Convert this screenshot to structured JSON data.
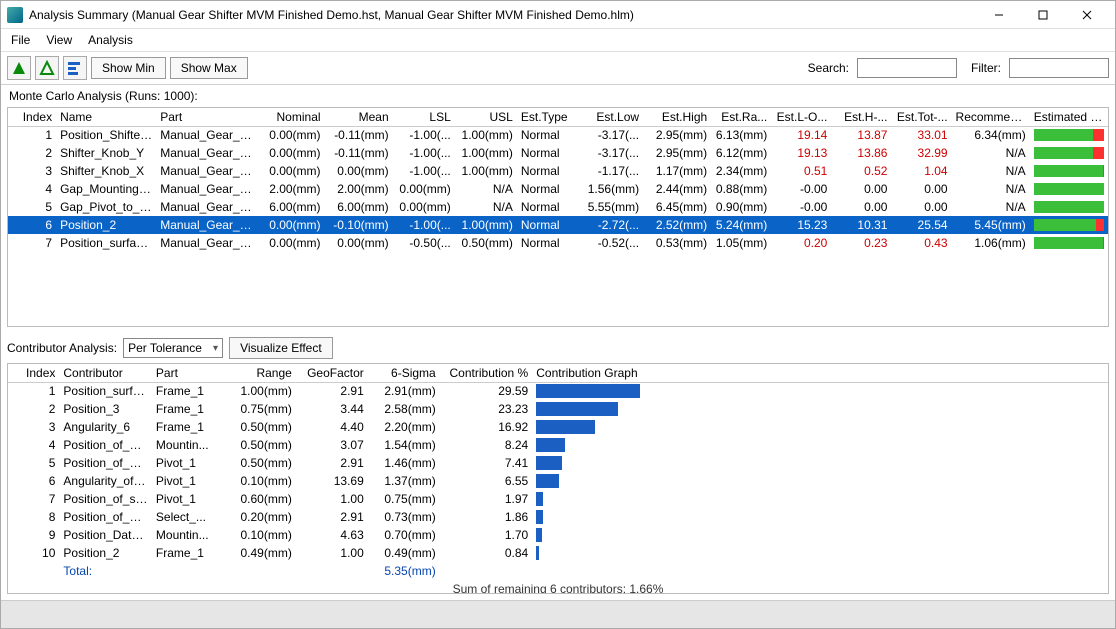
{
  "window": {
    "title": "Analysis Summary (Manual Gear Shifter MVM Finished Demo.hst, Manual Gear Shifter MVM Finished Demo.hlm)"
  },
  "menu": {
    "file": "File",
    "view": "View",
    "analysis": "Analysis"
  },
  "toolbar": {
    "show_min": "Show Min",
    "show_max": "Show Max",
    "search_label": "Search:",
    "search_value": "",
    "filter_label": "Filter:",
    "filter_value": ""
  },
  "mc_label": "Monte Carlo Analysis (Runs: 1000):",
  "mc_columns": [
    "Index",
    "Name",
    "Part",
    "Nominal",
    "Mean",
    "LSL",
    "USL",
    "Est.Type",
    "Est.Low",
    "Est.High",
    "Est.Ra...",
    "Est.L-O...",
    "Est.H-...",
    "Est.Tot-...",
    "Recommen...",
    "Estimated P..."
  ],
  "mc_col_widths": [
    48,
    100,
    100,
    68,
    68,
    62,
    62,
    58,
    68,
    68,
    60,
    60,
    60,
    60,
    78,
    78
  ],
  "mc_col_align": [
    "r",
    "l",
    "l",
    "r",
    "r",
    "r",
    "r",
    "l",
    "r",
    "r",
    "r",
    "r",
    "r",
    "r",
    "r",
    "l"
  ],
  "mc_rows": [
    {
      "idx": "1",
      "name": "Position_Shifter_...",
      "part": "Manual_Gear_Sh...",
      "nominal": "0.00(mm)",
      "mean": "-0.11(mm)",
      "lsl": "-1.00(...",
      "usl": "1.00(mm)",
      "etype": "Normal",
      "elow": "-3.17(...",
      "ehigh": "2.95(mm)",
      "era": "6.13(mm)",
      "elo": "19.14",
      "ehi": "13.87",
      "etot": "33.01",
      "rec": "6.34(mm)",
      "perf": {
        "green_l": 0,
        "green_w": 85,
        "red_l": 85,
        "red_w": 15
      },
      "red": true
    },
    {
      "idx": "2",
      "name": "Shifter_Knob_Y",
      "part": "Manual_Gear_Sh...",
      "nominal": "0.00(mm)",
      "mean": "-0.11(mm)",
      "lsl": "-1.00(...",
      "usl": "1.00(mm)",
      "etype": "Normal",
      "elow": "-3.17(...",
      "ehigh": "2.95(mm)",
      "era": "6.12(mm)",
      "elo": "19.13",
      "ehi": "13.86",
      "etot": "32.99",
      "rec": "N/A",
      "perf": {
        "green_l": 0,
        "green_w": 85,
        "red_l": 85,
        "red_w": 15
      },
      "red": true
    },
    {
      "idx": "3",
      "name": "Shifter_Knob_X",
      "part": "Manual_Gear_Sh...",
      "nominal": "0.00(mm)",
      "mean": "0.00(mm)",
      "lsl": "-1.00(...",
      "usl": "1.00(mm)",
      "etype": "Normal",
      "elow": "-1.17(...",
      "ehigh": "1.17(mm)",
      "era": "2.34(mm)",
      "elo": "0.51",
      "ehi": "0.52",
      "etot": "1.04",
      "rec": "N/A",
      "perf": {
        "green_l": 0,
        "green_w": 98,
        "red_l": 98,
        "red_w": 2
      },
      "red": true
    },
    {
      "idx": "4",
      "name": "Gap_Mounting_B...",
      "part": "Manual_Gear_Sh...",
      "nominal": "2.00(mm)",
      "mean": "2.00(mm)",
      "lsl": "0.00(mm)",
      "usl": "N/A",
      "etype": "Normal",
      "elow": "1.56(mm)",
      "ehigh": "2.44(mm)",
      "era": "0.88(mm)",
      "elo": "-0.00",
      "ehi": "0.00",
      "etot": "0.00",
      "rec": "N/A",
      "perf": {
        "green_l": 0,
        "green_w": 100,
        "red_l": 100,
        "red_w": 0
      },
      "red": false
    },
    {
      "idx": "5",
      "name": "Gap_Pivot_to_Stick",
      "part": "Manual_Gear_Sh...",
      "nominal": "6.00(mm)",
      "mean": "6.00(mm)",
      "lsl": "0.00(mm)",
      "usl": "N/A",
      "etype": "Normal",
      "elow": "5.55(mm)",
      "ehigh": "6.45(mm)",
      "era": "0.90(mm)",
      "elo": "-0.00",
      "ehi": "0.00",
      "etot": "0.00",
      "rec": "N/A",
      "perf": {
        "green_l": 0,
        "green_w": 100,
        "red_l": 100,
        "red_w": 0
      },
      "red": false
    },
    {
      "idx": "6",
      "name": "Position_2",
      "part": "Manual_Gear_Sh...",
      "nominal": "0.00(mm)",
      "mean": "-0.10(mm)",
      "lsl": "-1.00(...",
      "usl": "1.00(mm)",
      "etype": "Normal",
      "elow": "-2.72(...",
      "ehigh": "2.52(mm)",
      "era": "5.24(mm)",
      "elo": "15.23",
      "ehi": "10.31",
      "etot": "25.54",
      "rec": "5.45(mm)",
      "perf": {
        "green_l": 0,
        "green_w": 88,
        "red_l": 88,
        "red_w": 12
      },
      "red": true,
      "selected": true
    },
    {
      "idx": "7",
      "name": "Position_surfacic...",
      "part": "Manual_Gear_Sh...",
      "nominal": "0.00(mm)",
      "mean": "0.00(mm)",
      "lsl": "-0.50(...",
      "usl": "0.50(mm)",
      "etype": "Normal",
      "elow": "-0.52(...",
      "ehigh": "0.53(mm)",
      "era": "1.05(mm)",
      "elo": "0.20",
      "ehi": "0.23",
      "etot": "0.43",
      "rec": "1.06(mm)",
      "perf": {
        "green_l": 0,
        "green_w": 98,
        "red_l": 98,
        "red_w": 2
      },
      "red": true
    }
  ],
  "contrib_section": {
    "label": "Contributor Analysis:",
    "dropdown": "Per Tolerance",
    "visualize_btn": "Visualize Effect"
  },
  "contrib_columns": [
    "Index",
    "Contributor",
    "Part",
    "Range",
    "GeoFactor",
    "6-Sigma",
    "Contribution %",
    "Contribution Graph"
  ],
  "contrib_col_widths": [
    50,
    90,
    70,
    70,
    70,
    70,
    90,
    560
  ],
  "contrib_col_align": [
    "r",
    "l",
    "l",
    "r",
    "r",
    "r",
    "r",
    "l"
  ],
  "contrib_rows": [
    {
      "idx": "1",
      "c": "Position_surfa...",
      "p": "Frame_1",
      "rng": "1.00(mm)",
      "gf": "2.91",
      "s6": "2.91(mm)",
      "pct": "29.59",
      "bar": 29.59
    },
    {
      "idx": "2",
      "c": "Position_3",
      "p": "Frame_1",
      "rng": "0.75(mm)",
      "gf": "3.44",
      "s6": "2.58(mm)",
      "pct": "23.23",
      "bar": 23.23
    },
    {
      "idx": "3",
      "c": "Angularity_6",
      "p": "Frame_1",
      "rng": "0.50(mm)",
      "gf": "4.40",
      "s6": "2.20(mm)",
      "pct": "16.92",
      "bar": 16.92
    },
    {
      "idx": "4",
      "c": "Position_of_ho...",
      "p": "Mountin...",
      "rng": "0.50(mm)",
      "gf": "3.07",
      "s6": "1.54(mm)",
      "pct": "8.24",
      "bar": 8.24
    },
    {
      "idx": "5",
      "c": "Position_of_ho...",
      "p": "Pivot_1",
      "rng": "0.50(mm)",
      "gf": "2.91",
      "s6": "1.46(mm)",
      "pct": "7.41",
      "bar": 7.41
    },
    {
      "idx": "6",
      "c": "Angularity_of_...",
      "p": "Pivot_1",
      "rng": "0.10(mm)",
      "gf": "13.69",
      "s6": "1.37(mm)",
      "pct": "6.55",
      "bar": 6.55
    },
    {
      "idx": "7",
      "c": "Position_of_slo...",
      "p": "Pivot_1",
      "rng": "0.60(mm)",
      "gf": "1.00",
      "s6": "0.75(mm)",
      "pct": "1.97",
      "bar": 1.97
    },
    {
      "idx": "8",
      "c": "Position_of_ba...",
      "p": "Select_...",
      "rng": "0.20(mm)",
      "gf": "2.91",
      "s6": "0.73(mm)",
      "pct": "1.86",
      "bar": 1.86
    },
    {
      "idx": "9",
      "c": "Position_Datu...",
      "p": "Mountin...",
      "rng": "0.10(mm)",
      "gf": "4.63",
      "s6": "0.70(mm)",
      "pct": "1.70",
      "bar": 1.7
    },
    {
      "idx": "10",
      "c": "Position_2",
      "p": "Frame_1",
      "rng": "0.49(mm)",
      "gf": "1.00",
      "s6": "0.49(mm)",
      "pct": "0.84",
      "bar": 0.84
    }
  ],
  "contrib_total": {
    "label": "Total:",
    "s6": "5.35(mm)"
  },
  "contrib_sum": "Sum of remaining 6 contributors: 1.66%",
  "bar_scale": 3.5,
  "colors": {
    "bar": "#1b5fc2",
    "green": "#3bbf3b",
    "red": "#ff3030",
    "sel": "#0a64c8",
    "redtext": "#c00000"
  }
}
